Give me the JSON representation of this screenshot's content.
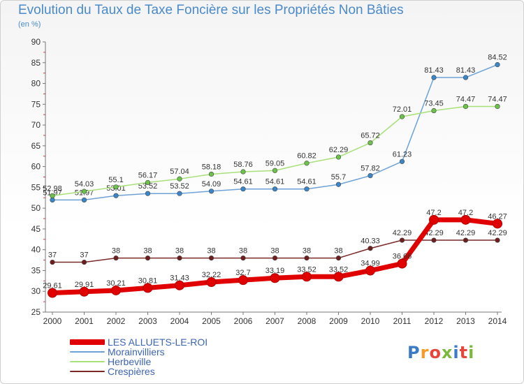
{
  "title": "Evolution du Taux de Taxe Foncière sur les Propriétés Non Bâties",
  "unit_label": "(en %)",
  "logo": {
    "letters": [
      "P",
      "r",
      "o",
      "x",
      "i",
      "t",
      "i"
    ],
    "colors": [
      "#3a7bc8",
      "#f59a23",
      "#e8453c",
      "#7cb83d",
      "#3a7bc8",
      "#e8453c",
      "#7cb83d"
    ]
  },
  "chart_data": {
    "type": "line",
    "title": "Evolution du Taux de Taxe Foncière sur les Propriétés Non Bâties",
    "ylabel": "(en %)",
    "xlabel": "",
    "ylim": [
      25,
      90
    ],
    "yticks": [
      25,
      30,
      35,
      40,
      45,
      50,
      55,
      60,
      65,
      70,
      75,
      80,
      85,
      90
    ],
    "x": [
      "2000",
      "2001",
      "2002",
      "2003",
      "2004",
      "2005",
      "2006",
      "2007",
      "2008",
      "2009",
      "2010",
      "2011",
      "2012",
      "2013",
      "2014"
    ],
    "series": [
      {
        "name": "LES ALLUETS-LE-ROI",
        "color": "#e00000",
        "marker_color": "#e00000",
        "emphasis": true,
        "values": [
          29.61,
          29.91,
          30.21,
          30.81,
          31.43,
          32.22,
          32.7,
          33.19,
          33.52,
          33.52,
          34.99,
          36.66,
          47.2,
          47.2,
          46.27
        ],
        "labels": [
          "29.61",
          "29.91",
          "30.21",
          "30.81",
          "31.43",
          "32.22",
          "32.7",
          "33.19",
          "33.52",
          "33.52",
          "34.99",
          "36.66",
          "47.2",
          "47.2",
          "46.27"
        ]
      },
      {
        "name": "Morainvilliers",
        "color": "#6ea2d6",
        "marker_color": "#3a86c8",
        "values": [
          51.97,
          51.97,
          53.01,
          53.52,
          53.52,
          54.09,
          54.61,
          54.61,
          54.61,
          55.7,
          57.82,
          61.23,
          81.43,
          81.43,
          84.52
        ],
        "labels": [
          "51.97",
          "51.97",
          "53.01",
          "53.52",
          "53.52",
          "54.09",
          "54.61",
          "54.61",
          "54.61",
          "55.7",
          "57.82",
          "61.23",
          "81.43",
          "81.43",
          "84.52"
        ]
      },
      {
        "name": "Herbeville",
        "color": "#a8e07a",
        "marker_color": "#6cc24a",
        "values": [
          52.98,
          54.03,
          55.1,
          56.17,
          57.04,
          58.18,
          58.76,
          59.05,
          60.82,
          62.29,
          65.72,
          72.01,
          73.45,
          74.47,
          74.47
        ],
        "labels": [
          "52.98",
          "54.03",
          "55.1",
          "56.17",
          "57.04",
          "58.18",
          "58.76",
          "59.05",
          "60.82",
          "62.29",
          "65.72",
          "72.01",
          "73.45",
          "74.47",
          "74.47"
        ]
      },
      {
        "name": "Crespières",
        "color": "#7a2828",
        "marker_color": "#6e1e1e",
        "values": [
          37,
          37,
          38,
          38,
          38,
          38,
          38,
          38,
          38,
          38,
          40.33,
          42.29,
          42.29,
          42.29,
          42.29
        ],
        "labels": [
          "37",
          "37",
          "38",
          "38",
          "38",
          "38",
          "38",
          "38",
          "38",
          "38",
          "40.33",
          "42.29",
          "42.29",
          "42.29",
          "42.29"
        ]
      }
    ],
    "legend_position": "bottom-left",
    "grid": false
  }
}
